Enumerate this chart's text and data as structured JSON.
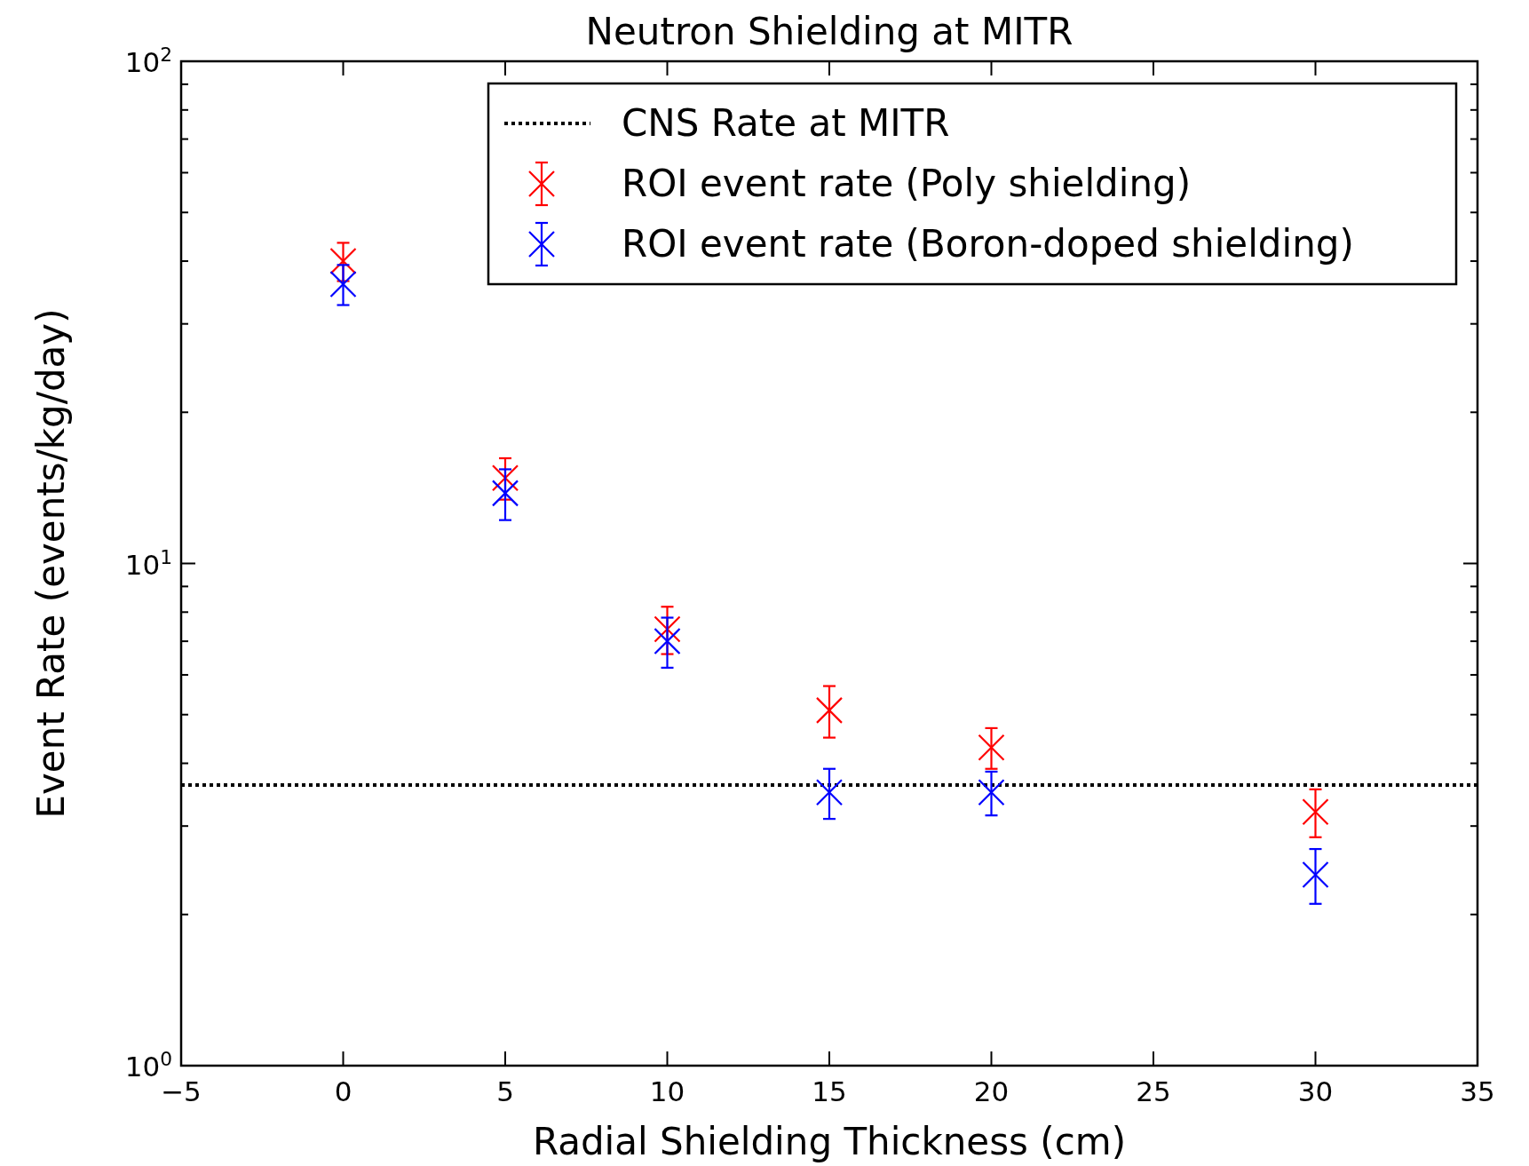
{
  "chart_data": {
    "type": "scatter",
    "title": "Neutron Shielding at MITR",
    "xlabel": "Radial Shielding Thickness (cm)",
    "ylabel": "Event Rate (events/kg/day)",
    "log": "y",
    "xlim": [
      -5,
      35
    ],
    "xticks": [
      {
        "value": -5,
        "label": "−5"
      },
      0,
      5,
      10,
      15,
      20,
      25,
      30,
      35
    ],
    "ylim": [
      1,
      100
    ],
    "yticks": [
      {
        "value": 1,
        "label": "10$^{0}$"
      },
      {
        "value": 2,
        "label": null
      },
      {
        "value": 3,
        "label": null
      },
      {
        "value": 4,
        "label": null
      },
      {
        "value": 5,
        "label": null
      },
      {
        "value": 6,
        "label": null
      },
      {
        "value": 7,
        "label": null
      },
      {
        "value": 8,
        "label": null
      },
      {
        "value": 9,
        "label": null
      },
      {
        "value": 10,
        "label": "10$^{1}$"
      },
      {
        "value": 20,
        "label": null
      },
      {
        "value": 30,
        "label": null
      },
      {
        "value": 40,
        "label": null
      },
      {
        "value": 50,
        "label": null
      },
      {
        "value": 60,
        "label": null
      },
      {
        "value": 70,
        "label": null
      },
      {
        "value": 80,
        "label": null
      },
      {
        "value": 90,
        "label": null
      },
      {
        "value": 100,
        "label": "10$^{2}$"
      }
    ],
    "grid": false,
    "legend": "top right",
    "marker": "cross",
    "ref_lines": [
      {
        "axis": "y",
        "value": 3.62,
        "label": "CNS Rate at MITR",
        "color": "#000000",
        "line_style": "dotted"
      }
    ],
    "series": [
      {
        "name": "ROI event rate (Poly shielding)",
        "color": "#ff0000",
        "x": [
          0,
          5,
          10,
          15,
          20,
          30
        ],
        "values": [
          40,
          14.8,
          7.4,
          5.1,
          4.3,
          3.2
        ],
        "errors": [
          3.5,
          1.4,
          0.8,
          0.6,
          0.4,
          0.35
        ]
      },
      {
        "name": "ROI event rate (Boron-doped shielding)",
        "color": "#0000ff",
        "x": [
          0,
          5,
          10,
          15,
          20,
          30
        ],
        "values": [
          36,
          13.8,
          7.0,
          3.5,
          3.5,
          2.4
        ],
        "errors": [
          3.3,
          1.6,
          0.8,
          0.4,
          0.35,
          0.3
        ]
      }
    ]
  }
}
